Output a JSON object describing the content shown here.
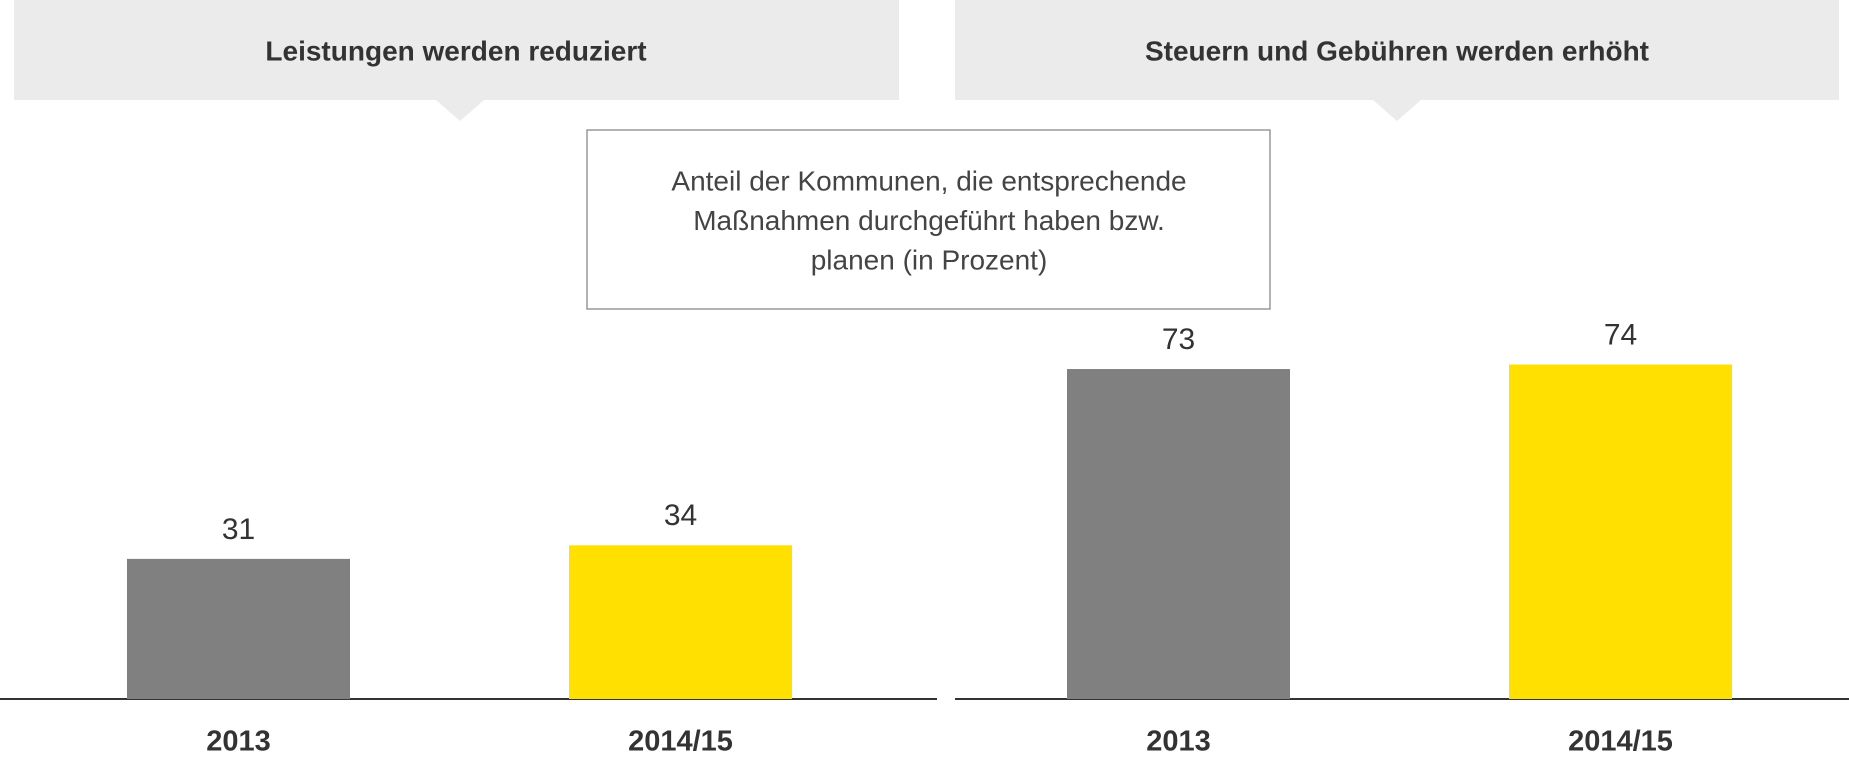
{
  "chart_data": [
    {
      "type": "bar",
      "title": "Leistungen werden reduziert",
      "categories": [
        "2013",
        "2014/15"
      ],
      "values": [
        31,
        34
      ],
      "colors": [
        "#808080",
        "#ffe000"
      ]
    },
    {
      "type": "bar",
      "title": "Steuern und Gebühren werden erhöht",
      "categories": [
        "2013",
        "2014/15"
      ],
      "values": [
        73,
        74
      ],
      "colors": [
        "#808080",
        "#ffe000"
      ]
    }
  ],
  "note": [
    "Anteil der Kommunen, die entsprechende",
    "Maßnahmen durchgeführt haben bzw.",
    "planen (in Prozent)"
  ]
}
